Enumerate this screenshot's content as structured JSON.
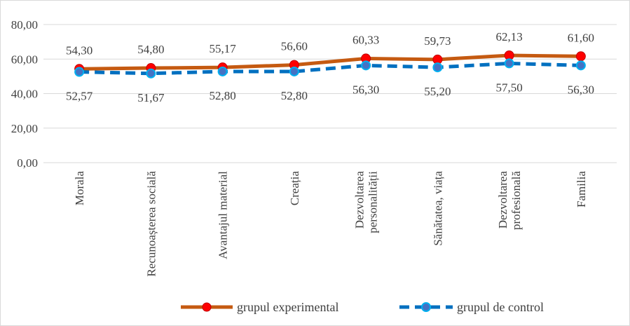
{
  "chart_data": {
    "type": "line",
    "categories": [
      [
        "Morala"
      ],
      [
        "Recunoașterea socială"
      ],
      [
        "Avantajul material"
      ],
      [
        "Creația"
      ],
      [
        "Dezvoltarea",
        "personalității"
      ],
      [
        "Sănătatea, viața"
      ],
      [
        "Dezvoltarea",
        "profesională"
      ],
      [
        "Familia"
      ]
    ],
    "series": [
      {
        "name": "grupul experimental",
        "values": [
          54.3,
          54.8,
          55.17,
          56.6,
          60.33,
          59.73,
          62.13,
          61.6
        ],
        "labels": [
          "54,30",
          "54,80",
          "55,17",
          "56,60",
          "60,33",
          "59,73",
          "62,13",
          "61,60"
        ],
        "line_color": "#c55a11",
        "marker_color": "#ff0000",
        "style": "solid"
      },
      {
        "name": "grupul de control",
        "values": [
          52.57,
          51.67,
          52.8,
          52.8,
          56.3,
          55.2,
          57.5,
          56.3
        ],
        "labels": [
          "52,57",
          "51,67",
          "52,80",
          "52,80",
          "56,30",
          "55,20",
          "57,50",
          "56,30"
        ],
        "line_color": "#0070c0",
        "marker_color": "#4472c4",
        "marker_edge": "#00b0f0",
        "style": "dashed"
      }
    ],
    "yticks": [
      "0,00",
      "20,00",
      "40,00",
      "60,00",
      "80,00"
    ],
    "ylim": [
      0,
      80
    ],
    "grid": true,
    "legend": "bottom"
  }
}
